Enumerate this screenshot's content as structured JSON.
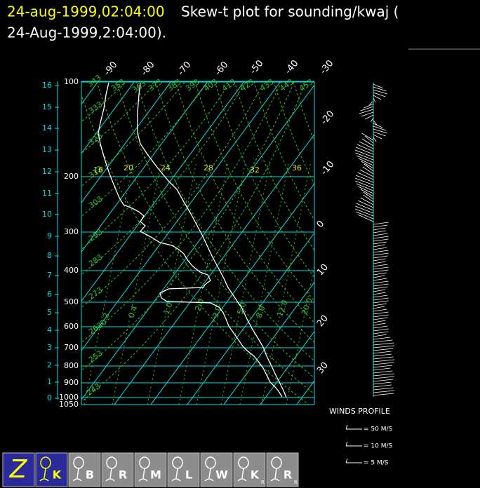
{
  "header": {
    "date": "24-aug-1999,02:04:00",
    "title": "Skew-t plot for sounding/kwaj (",
    "title_line2": "24-Aug-1999,2:04:00)."
  },
  "plot": {
    "pressure_labels": [
      "100",
      "200",
      "300",
      "400",
      "500",
      "600",
      "700",
      "800",
      "900",
      "1000",
      "1050"
    ],
    "height_labels": [
      "16",
      "15",
      "14",
      "13",
      "12",
      "11",
      "10",
      "9",
      "8",
      "7",
      "6",
      "5",
      "4",
      "3",
      "2",
      "1",
      "0"
    ],
    "isotherm_labels": [
      "-90",
      "-80",
      "-70",
      "-60",
      "-50",
      "-40",
      "-30",
      "-20",
      "-10",
      "0",
      "10",
      "20",
      "30"
    ],
    "theta_labels": [
      "243",
      "253",
      "263",
      "273",
      "283",
      "293",
      "303",
      "313",
      "323",
      "333",
      "343",
      "353",
      "363",
      "373",
      "383",
      "393",
      "403",
      "413",
      "423",
      "433",
      "443",
      "453"
    ],
    "mixing_ratio_labels": [
      "0.2",
      "0.4",
      "1.0",
      "2.0",
      "3.0",
      "5.0",
      "8.0",
      "12.0",
      "20.0"
    ],
    "mixing_ratio_labels_upper": [
      "16",
      "20",
      "24",
      "28",
      "32",
      "36"
    ]
  },
  "winds_legend": {
    "title": "WINDS PROFILE",
    "items": [
      "= 50 M/S",
      "= 10 M/S",
      "= 5 M/S"
    ]
  },
  "toolbar": {
    "buttons": [
      {
        "label": "Z"
      },
      {
        "label": "K"
      },
      {
        "label": "B"
      },
      {
        "label": "R"
      },
      {
        "label": "M"
      },
      {
        "label": "L"
      },
      {
        "label": "W"
      },
      {
        "label": "K",
        "sub": "R"
      },
      {
        "label": "R",
        "sub": "R"
      }
    ]
  }
}
